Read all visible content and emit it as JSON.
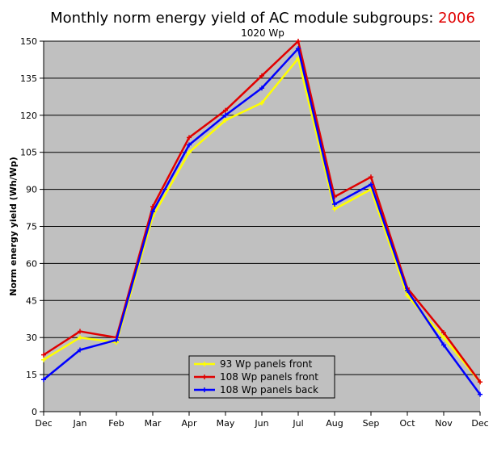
{
  "chart_data": {
    "type": "line",
    "title": "Monthly norm energy yield of AC module subgroups: ",
    "title_year": "2006",
    "subtitle": "1020 Wp",
    "ylabel": "Norm energy yield (Wh/Wp)",
    "xlabel": "",
    "categories": [
      "Dec",
      "Jan",
      "Feb",
      "Mar",
      "Apr",
      "May",
      "Jun",
      "Jul",
      "Aug",
      "Sep",
      "Oct",
      "Nov",
      "Dec"
    ],
    "ylim": [
      0,
      150
    ],
    "yticks": [
      0,
      15,
      30,
      45,
      60,
      75,
      90,
      105,
      120,
      135,
      150
    ],
    "grid": true,
    "legend_position": "bottom-center",
    "plot_background": "#c0c0c0",
    "series": [
      {
        "name": "93 Wp panels front",
        "color": "#ffff00",
        "values": [
          21,
          30,
          28,
          79,
          105,
          118,
          125,
          143,
          82,
          90,
          47,
          30,
          12
        ]
      },
      {
        "name": "108 Wp panels front",
        "color": "#e00000",
        "values": [
          23,
          32.5,
          30,
          83,
          111,
          122,
          136,
          150,
          87,
          95,
          50,
          32,
          12
        ]
      },
      {
        "name": "108 Wp panels back",
        "color": "#0000ff",
        "values": [
          13,
          25,
          29,
          81,
          108,
          120,
          131,
          147,
          84,
          92,
          49,
          27,
          7
        ]
      }
    ]
  }
}
